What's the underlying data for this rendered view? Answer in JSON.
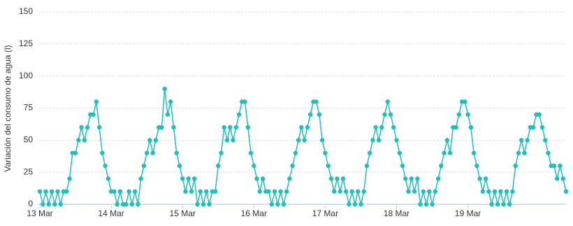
{
  "chart_data": {
    "type": "line",
    "y_label": "Variación del consumo de agua (l)",
    "x": [
      0,
      1,
      2,
      3,
      4,
      5,
      6,
      7,
      8,
      9,
      10,
      11,
      12,
      13,
      14,
      15,
      16,
      17,
      18,
      19,
      20,
      21,
      22,
      23,
      24,
      25,
      26,
      27,
      28,
      29,
      30,
      31,
      32,
      33,
      34,
      35,
      36,
      37,
      38,
      39,
      40,
      41,
      42,
      43,
      44,
      45,
      46,
      47,
      48,
      49,
      50,
      51,
      52,
      53,
      54,
      55,
      56,
      57,
      58,
      59,
      60,
      61,
      62,
      63,
      64,
      65,
      66,
      67,
      68,
      69,
      70,
      71,
      72,
      73,
      74,
      75,
      76,
      77,
      78,
      79,
      80,
      81,
      82,
      83,
      84,
      85,
      86,
      87,
      88,
      89,
      90,
      91,
      92,
      93,
      94,
      95,
      96,
      97,
      98,
      99,
      100,
      101,
      102,
      103,
      104,
      105,
      106,
      107,
      108,
      109,
      110,
      111,
      112,
      113,
      114,
      115,
      116,
      117,
      118,
      119,
      120,
      121,
      122,
      123,
      124,
      125,
      126,
      127,
      128,
      129,
      130,
      131,
      132,
      133,
      134,
      135,
      136,
      137,
      138,
      139,
      140,
      141,
      142,
      143,
      144,
      145,
      146,
      147,
      148,
      149,
      150,
      151,
      152,
      153,
      154,
      155,
      156,
      157,
      158,
      159,
      160,
      161,
      162,
      163,
      164,
      165,
      166,
      167,
      168,
      169,
      170,
      171,
      172,
      173,
      174,
      175,
      176,
      177
    ],
    "series": [
      {
        "color": "#1fc0b9",
        "values": [
          10,
          0,
          10,
          0,
          10,
          0,
          10,
          0,
          10,
          10,
          20,
          40,
          40,
          50,
          60,
          50,
          60,
          70,
          70,
          80,
          60,
          40,
          30,
          20,
          10,
          10,
          0,
          10,
          0,
          0,
          10,
          0,
          10,
          0,
          20,
          30,
          40,
          50,
          40,
          50,
          60,
          60,
          90,
          70,
          80,
          60,
          40,
          30,
          20,
          10,
          20,
          10,
          20,
          0,
          10,
          0,
          10,
          0,
          10,
          10,
          30,
          40,
          60,
          50,
          60,
          50,
          60,
          70,
          80,
          80,
          60,
          40,
          30,
          20,
          10,
          20,
          10,
          10,
          0,
          10,
          0,
          10,
          0,
          10,
          20,
          30,
          40,
          50,
          60,
          50,
          60,
          70,
          80,
          80,
          70,
          50,
          40,
          30,
          20,
          10,
          20,
          10,
          20,
          10,
          0,
          10,
          0,
          10,
          0,
          10,
          30,
          40,
          50,
          60,
          50,
          60,
          70,
          80,
          70,
          60,
          50,
          40,
          30,
          20,
          10,
          20,
          10,
          20,
          0,
          10,
          0,
          10,
          0,
          10,
          20,
          30,
          40,
          50,
          40,
          60,
          60,
          70,
          80,
          80,
          70,
          60,
          40,
          30,
          20,
          10,
          20,
          10,
          0,
          10,
          0,
          10,
          0,
          10,
          0,
          10,
          30,
          40,
          50,
          40,
          50,
          60,
          60,
          70,
          70,
          60,
          50,
          40,
          30,
          30,
          20,
          30,
          20,
          10
        ]
      }
    ],
    "xlim": [
      0,
      177
    ],
    "xticks": [
      {
        "value": 0,
        "label": "13 Mar"
      },
      {
        "value": 24,
        "label": "14 Mar"
      },
      {
        "value": 48,
        "label": "15 Mar"
      },
      {
        "value": 72,
        "label": "16 Mar"
      },
      {
        "value": 96,
        "label": "17 Mar"
      },
      {
        "value": 120,
        "label": "18 Mar"
      },
      {
        "value": 144,
        "label": "19 Mar"
      }
    ],
    "ylim": [
      0,
      150
    ],
    "yticks": [
      0,
      25,
      50,
      75,
      100,
      125,
      150
    ],
    "grid": true
  }
}
